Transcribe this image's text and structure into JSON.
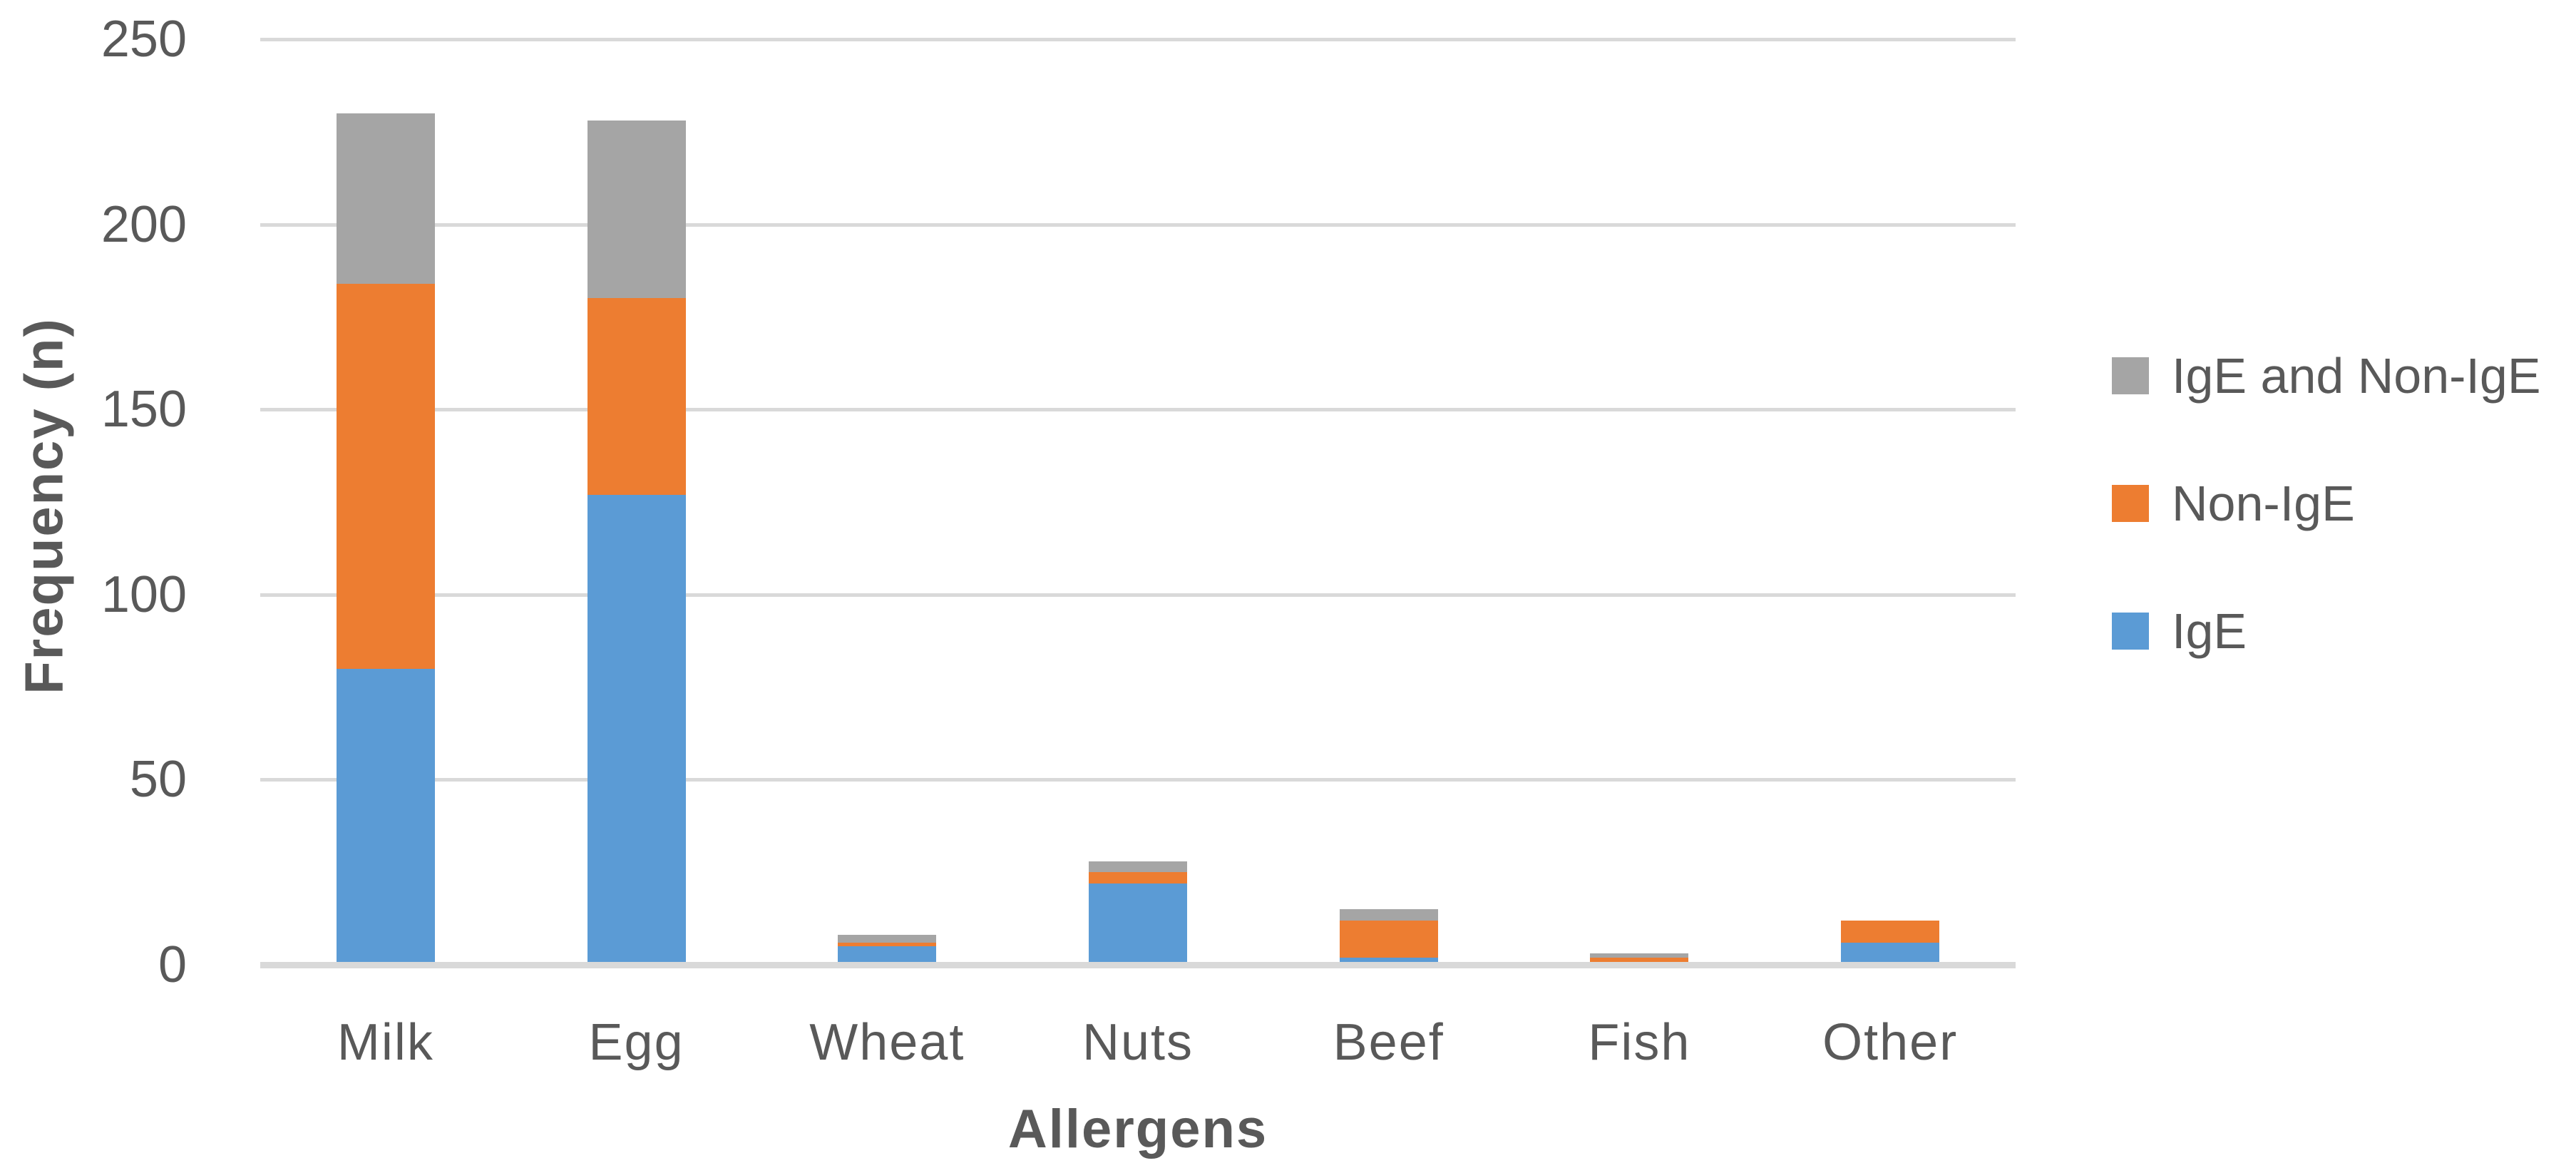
{
  "figure": {
    "background": "#ffffff"
  },
  "chart_data": {
    "type": "bar",
    "stacked": true,
    "title": "",
    "xlabel": "Allergens",
    "ylabel": "Frequency (n)",
    "categories": [
      "Milk",
      "Egg",
      "Wheat",
      "Nuts",
      "Beef",
      "Fish",
      "Other"
    ],
    "series": [
      {
        "name": "IgE",
        "color": "#5B9BD5",
        "values": [
          80,
          127,
          5,
          22,
          2,
          0,
          6
        ]
      },
      {
        "name": "Non-IgE",
        "color": "#ED7D31",
        "values": [
          104,
          53,
          1,
          3,
          10,
          2,
          6
        ]
      },
      {
        "name": "IgE and Non-IgE",
        "color": "#A5A5A5",
        "values": [
          46,
          48,
          2,
          3,
          3,
          1,
          0
        ]
      }
    ],
    "totals": [
      230,
      228,
      8,
      28,
      15,
      3,
      12
    ],
    "ylim": [
      0,
      250
    ],
    "yticks": [
      0,
      50,
      100,
      150,
      200,
      250
    ],
    "grid": true,
    "legend_position": "right",
    "legend_order": [
      "IgE and Non-IgE",
      "Non-IgE",
      "IgE"
    ]
  },
  "colors": {
    "gridline": "#D9D9D9",
    "axis_line": "#D9D9D9",
    "axis_text": "#595959"
  }
}
